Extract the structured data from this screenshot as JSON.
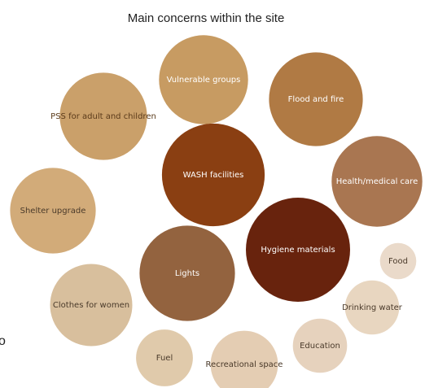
{
  "chart_data": {
    "type": "bubble",
    "title": "Main concerns within the site",
    "xlabel": "",
    "ylabel": "",
    "legend": "none",
    "grid": false,
    "items": [
      {
        "label": "Vulnerable groups",
        "value": 54,
        "color": "#C79B62",
        "label_color": "#ffffff"
      },
      {
        "label": "Flood and fire",
        "value": 60,
        "color": "#B07A44",
        "label_color": "#ffffff"
      },
      {
        "label": "PSS for adult and children",
        "value": 52,
        "color": "#CAA06A",
        "label_color": "#5a3a1a"
      },
      {
        "label": "WASH facilities",
        "value": 72,
        "color": "#8A3F12",
        "label_color": "#ffffff"
      },
      {
        "label": "Health/medical care",
        "value": 56,
        "color": "#A97651",
        "label_color": "#ffffff"
      },
      {
        "label": "Shelter upgrade",
        "value": 50,
        "color": "#D2AB79",
        "label_color": "#4a3a2a"
      },
      {
        "label": "Hygiene materials",
        "value": 74,
        "color": "#68230D",
        "label_color": "#ffffff"
      },
      {
        "label": "Lights",
        "value": 62,
        "color": "#93633F",
        "label_color": "#ffffff"
      },
      {
        "label": "Food",
        "value": 9,
        "color": "#EADACA",
        "label_color": "#4a3a2a"
      },
      {
        "label": "Clothes for women",
        "value": 46,
        "color": "#D8BF9D",
        "label_color": "#4a3a2a"
      },
      {
        "label": "Drinking water",
        "value": 20,
        "color": "#E8D6C0",
        "label_color": "#4a3a2a"
      },
      {
        "label": "Education",
        "value": 20,
        "color": "#E6D2BD",
        "label_color": "#4a3a2a"
      },
      {
        "label": "Fuel",
        "value": 22,
        "color": "#E0CAAB",
        "label_color": "#4a3a2a"
      },
      {
        "label": "Recreational space",
        "value": 31,
        "color": "#E4CDB3",
        "label_color": "#4a3a2a"
      }
    ]
  },
  "stray_text": "o"
}
